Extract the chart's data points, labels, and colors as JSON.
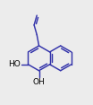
{
  "bg_color": "#ececec",
  "line_color": "#3333aa",
  "line_width": 1.05,
  "oh_fontsize": 6.5,
  "oh_color": "#000000",
  "fig_width": 1.04,
  "fig_height": 1.17,
  "dpi": 100
}
